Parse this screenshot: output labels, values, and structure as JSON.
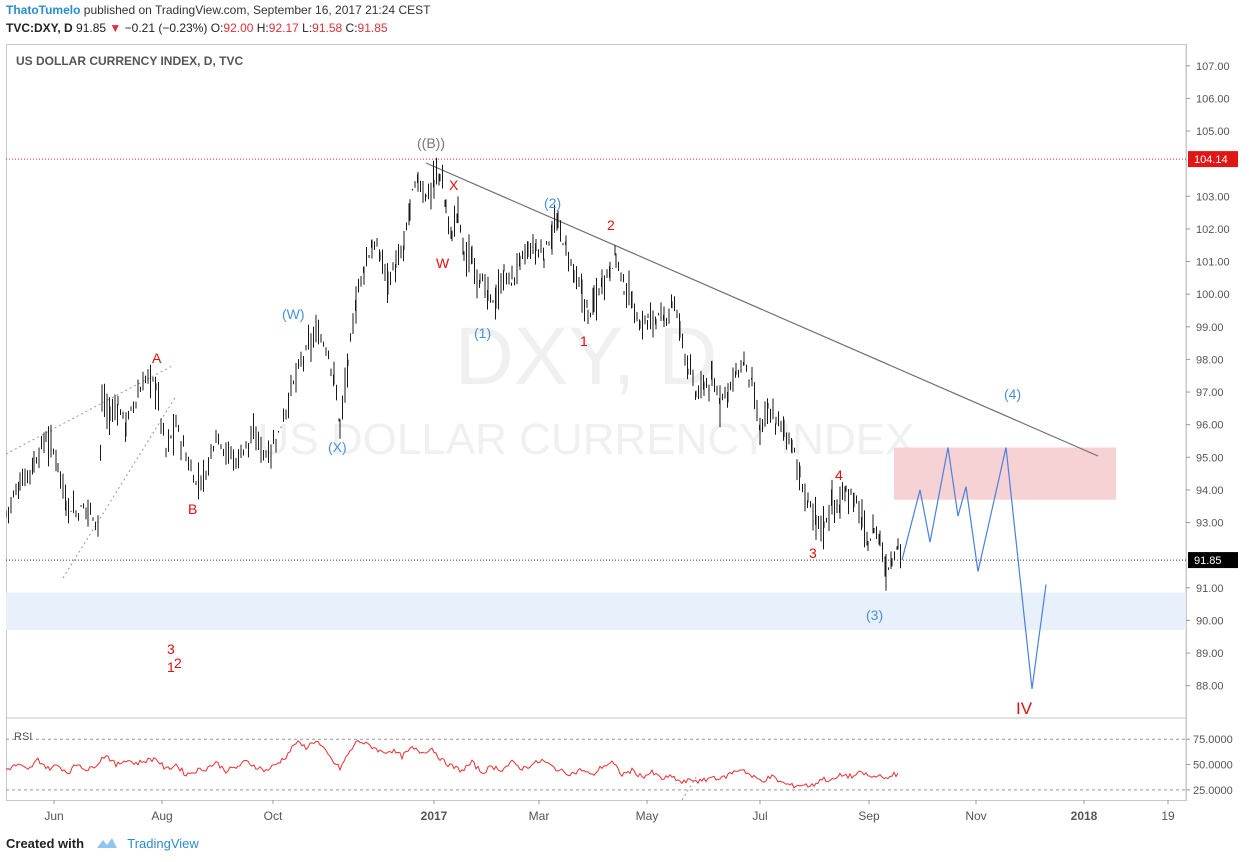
{
  "header": {
    "author": "ThatoTumelo",
    "published_text": "published on TradingView.com, September 16, 2017 21:24 CEST",
    "symbol": "TVC:DXY, D",
    "last": "91.85",
    "change": "−0.21 (−0.23%)",
    "open_label": "O:",
    "open": "92.00",
    "high_label": "H:",
    "high": "92.17",
    "low_label": "L:",
    "low": "91.58",
    "close_label": "C:",
    "close": "91.85"
  },
  "chart_title": "US DOLLAR CURRENCY INDEX, D, TVC",
  "watermark": {
    "symbol": "DXY, D",
    "name": "US DOLLAR CURRENCY INDEX"
  },
  "footer": {
    "created_with": "Created with",
    "brand": "TradingView"
  },
  "colors": {
    "price_bar": "#1a1a1a",
    "rsi_line": "#e83030",
    "wave_red": "#e01010",
    "wave_blue": "#4a90d9",
    "projection": "#4a80e0",
    "target_zone": "#f7d2d4",
    "support_zone": "#e8f0fb",
    "trendline": "#606060",
    "label_red_bg": "#e01515",
    "label_black_bg": "#000000"
  },
  "chart_data": {
    "type": "line",
    "x_axis": [
      "Jun",
      "Aug",
      "Oct",
      "2017",
      "Mar",
      "May",
      "Jul",
      "Sep",
      "Nov",
      "2018",
      "19"
    ],
    "y_axis_ticks": [
      "107.00",
      "106.00",
      "105.00",
      "103.00",
      "102.00",
      "101.00",
      "100.00",
      "99.00",
      "98.00",
      "97.00",
      "96.00",
      "95.00",
      "94.00",
      "93.00",
      "91.00",
      "90.00",
      "89.00",
      "88.00"
    ],
    "ylim": [
      87.5,
      107.3
    ],
    "price_labels": {
      "high_marker": "104.14",
      "last_marker": "91.85"
    },
    "series": [
      {
        "values": [
          [
            0,
            93.3
          ],
          [
            14,
            94.2
          ],
          [
            28,
            94.8
          ],
          [
            40,
            95.6
          ],
          [
            52,
            94.9
          ],
          [
            60,
            93.6
          ],
          [
            70,
            93.3
          ],
          [
            82,
            93.5
          ],
          [
            92,
            93.0
          ],
          [
            96,
            96.7
          ],
          [
            104,
            96.3
          ],
          [
            112,
            96.6
          ],
          [
            120,
            96.0
          ],
          [
            132,
            96.9
          ],
          [
            142,
            97.5
          ],
          [
            150,
            97.2
          ],
          [
            160,
            95.2
          ],
          [
            170,
            96.0
          ],
          [
            180,
            95.0
          ],
          [
            190,
            94.2
          ],
          [
            200,
            94.5
          ],
          [
            210,
            95.8
          ],
          [
            220,
            95.2
          ],
          [
            230,
            94.9
          ],
          [
            240,
            95.4
          ],
          [
            250,
            95.6
          ],
          [
            260,
            95.1
          ],
          [
            270,
            95.5
          ],
          [
            280,
            96.5
          ],
          [
            290,
            97.5
          ],
          [
            300,
            98.2
          ],
          [
            310,
            98.8
          ],
          [
            320,
            98.4
          ],
          [
            328,
            97.5
          ],
          [
            334,
            96.0
          ],
          [
            342,
            97.8
          ],
          [
            350,
            99.8
          ],
          [
            358,
            100.8
          ],
          [
            366,
            101.5
          ],
          [
            374,
            101.2
          ],
          [
            382,
            100.5
          ],
          [
            390,
            100.8
          ],
          [
            398,
            101.4
          ],
          [
            404,
            102.8
          ],
          [
            412,
            103.5
          ],
          [
            420,
            103.0
          ],
          [
            428,
            103.4
          ],
          [
            434,
            103.7
          ],
          [
            440,
            102.6
          ],
          [
            446,
            101.8
          ],
          [
            452,
            102.6
          ],
          [
            458,
            101.3
          ],
          [
            466,
            101.0
          ],
          [
            474,
            100.5
          ],
          [
            482,
            99.9
          ],
          [
            490,
            99.8
          ],
          [
            498,
            100.6
          ],
          [
            506,
            100.4
          ],
          [
            514,
            101.0
          ],
          [
            522,
            101.3
          ],
          [
            530,
            101.4
          ],
          [
            538,
            101.2
          ],
          [
            546,
            101.9
          ],
          [
            552,
            102.1
          ],
          [
            560,
            101.4
          ],
          [
            568,
            100.6
          ],
          [
            576,
            100.0
          ],
          [
            582,
            99.4
          ],
          [
            588,
            99.7
          ],
          [
            596,
            100.4
          ],
          [
            604,
            100.8
          ],
          [
            610,
            101.2
          ],
          [
            618,
            100.2
          ],
          [
            626,
            99.8
          ],
          [
            634,
            99.0
          ],
          [
            642,
            99.2
          ],
          [
            650,
            99.3
          ],
          [
            658,
            99.1
          ],
          [
            666,
            99.8
          ],
          [
            674,
            99.0
          ],
          [
            682,
            97.8
          ],
          [
            690,
            96.9
          ],
          [
            698,
            97.2
          ],
          [
            706,
            97.3
          ],
          [
            714,
            96.8
          ],
          [
            722,
            97.1
          ],
          [
            730,
            97.5
          ],
          [
            738,
            97.9
          ],
          [
            746,
            97.2
          ],
          [
            754,
            95.8
          ],
          [
            762,
            96.4
          ],
          [
            770,
            96.1
          ],
          [
            778,
            95.9
          ],
          [
            786,
            95.4
          ],
          [
            794,
            94.3
          ],
          [
            802,
            93.6
          ],
          [
            810,
            93.1
          ],
          [
            818,
            92.9
          ],
          [
            826,
            93.7
          ],
          [
            834,
            93.4
          ],
          [
            840,
            94.1
          ],
          [
            848,
            93.7
          ],
          [
            856,
            93.1
          ],
          [
            862,
            92.3
          ],
          [
            868,
            92.8
          ],
          [
            874,
            92.5
          ],
          [
            880,
            91.5
          ],
          [
            886,
            91.9
          ],
          [
            892,
            92.4
          ],
          [
            896,
            91.85
          ]
        ]
      },
      {
        "values": [
          [
            0,
            45
          ],
          [
            12,
            50
          ],
          [
            22,
            44
          ],
          [
            32,
            55
          ],
          [
            42,
            46
          ],
          [
            52,
            49
          ],
          [
            62,
            42
          ],
          [
            72,
            51
          ],
          [
            82,
            44
          ],
          [
            92,
            52
          ],
          [
            100,
            60
          ],
          [
            110,
            49
          ],
          [
            120,
            55
          ],
          [
            130,
            51
          ],
          [
            140,
            54
          ],
          [
            150,
            56
          ],
          [
            160,
            45
          ],
          [
            170,
            50
          ],
          [
            180,
            40
          ],
          [
            190,
            44
          ],
          [
            200,
            46
          ],
          [
            210,
            52
          ],
          [
            220,
            44
          ],
          [
            230,
            47
          ],
          [
            240,
            53
          ],
          [
            250,
            48
          ],
          [
            260,
            44
          ],
          [
            270,
            50
          ],
          [
            280,
            58
          ],
          [
            290,
            72
          ],
          [
            300,
            67
          ],
          [
            310,
            74
          ],
          [
            320,
            62
          ],
          [
            328,
            52
          ],
          [
            334,
            46
          ],
          [
            342,
            60
          ],
          [
            352,
            74
          ],
          [
            360,
            70
          ],
          [
            368,
            67
          ],
          [
            376,
            62
          ],
          [
            386,
            64
          ],
          [
            396,
            58
          ],
          [
            406,
            66
          ],
          [
            416,
            62
          ],
          [
            426,
            66
          ],
          [
            436,
            54
          ],
          [
            446,
            48
          ],
          [
            456,
            44
          ],
          [
            466,
            52
          ],
          [
            476,
            42
          ],
          [
            486,
            48
          ],
          [
            496,
            45
          ],
          [
            506,
            52
          ],
          [
            516,
            46
          ],
          [
            526,
            50
          ],
          [
            536,
            54
          ],
          [
            546,
            48
          ],
          [
            556,
            43
          ],
          [
            566,
            41
          ],
          [
            576,
            45
          ],
          [
            586,
            39
          ],
          [
            596,
            48
          ],
          [
            606,
            52
          ],
          [
            616,
            40
          ],
          [
            626,
            44
          ],
          [
            636,
            38
          ],
          [
            646,
            42
          ],
          [
            656,
            36
          ],
          [
            666,
            38
          ],
          [
            676,
            32
          ],
          [
            686,
            35
          ],
          [
            696,
            33
          ],
          [
            706,
            38
          ],
          [
            716,
            36
          ],
          [
            726,
            42
          ],
          [
            736,
            46
          ],
          [
            746,
            38
          ],
          [
            756,
            34
          ],
          [
            766,
            38
          ],
          [
            776,
            32
          ],
          [
            786,
            29
          ],
          [
            796,
            30
          ],
          [
            806,
            29
          ],
          [
            816,
            36
          ],
          [
            826,
            34
          ],
          [
            836,
            40
          ],
          [
            846,
            38
          ],
          [
            856,
            42
          ],
          [
            866,
            37
          ],
          [
            876,
            40
          ],
          [
            882,
            34
          ],
          [
            888,
            42
          ],
          [
            894,
            38
          ]
        ]
      },
      {
        "values": [
          [
            896,
            91.85
          ],
          [
            914,
            94.0
          ],
          [
            924,
            92.4
          ],
          [
            942,
            95.3
          ],
          [
            952,
            93.2
          ],
          [
            960,
            94.1
          ],
          [
            972,
            91.5
          ],
          [
            1000,
            95.3
          ],
          [
            1026,
            87.9
          ],
          [
            1040,
            91.1
          ]
        ]
      }
    ],
    "rsi": {
      "label": "RSI",
      "levels": [
        75,
        50,
        25
      ],
      "tick_labels": [
        "75.0000",
        "50.0000",
        "25.0000"
      ]
    },
    "annotations": {
      "red": [
        "A",
        "B",
        "X",
        "W",
        "1",
        "2",
        "3",
        "4",
        "IV",
        "3",
        "2",
        "1"
      ],
      "blue": [
        "(W)",
        "(X)",
        "(1)",
        "(2)",
        "(3)",
        "(4)"
      ],
      "gray": [
        "((B))"
      ]
    },
    "zones": [
      {
        "name": "target zone",
        "from": 93.7,
        "to": 95.3
      },
      {
        "name": "support zone",
        "from": 89.7,
        "to": 90.85
      }
    ]
  }
}
